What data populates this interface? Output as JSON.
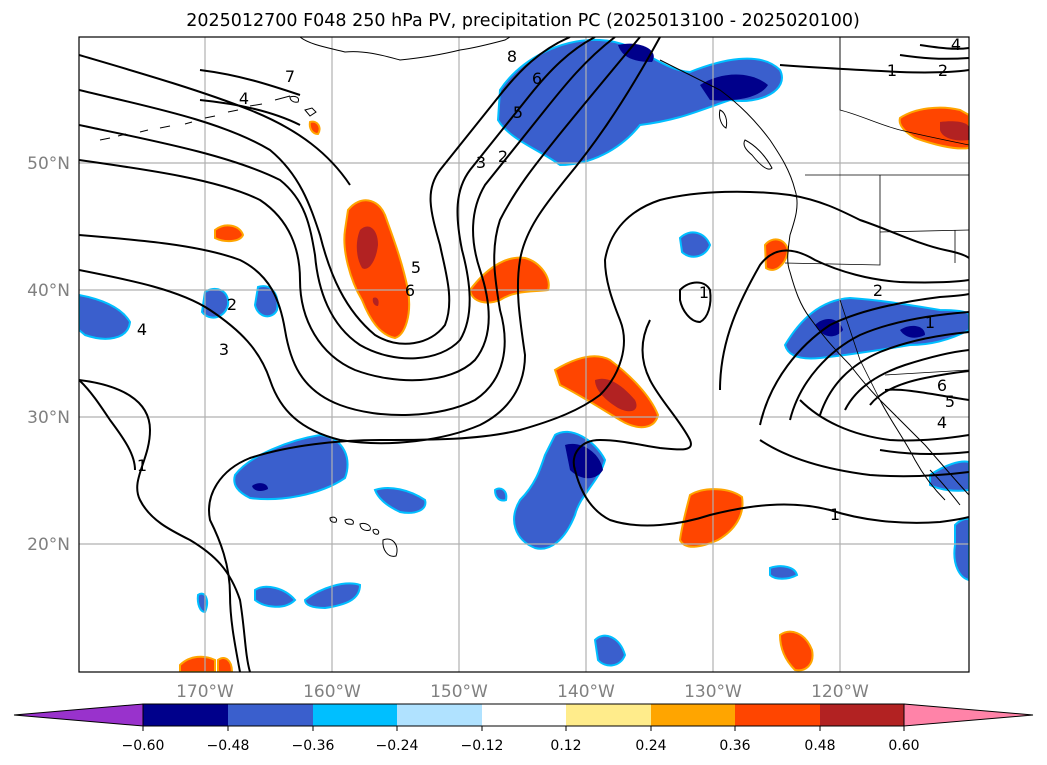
{
  "title": "2025012700 F048 250 hPa PV, precipitation PC (2025013100 - 2025020100)",
  "latitude_labels": [
    "50°N",
    "40°N",
    "30°N",
    "20°N"
  ],
  "longitude_labels": [
    "170°W",
    "160°W",
    "150°W",
    "140°W",
    "130°W",
    "120°W"
  ],
  "colorbar": {
    "tick_labels": [
      "−0.60",
      "−0.48",
      "−0.36",
      "−0.24",
      "−0.12",
      "0.12",
      "0.24",
      "0.36",
      "0.48",
      "0.60"
    ],
    "colors": [
      "#9932cc",
      "#00008b",
      "#3a5fcd",
      "#00bfff",
      "#b0e2ff",
      "#ffffff",
      "#ffec8b",
      "#ffa500",
      "#ff4500",
      "#b22222",
      "#ff83a8"
    ]
  },
  "contour_labels": [
    "7",
    "4",
    "8",
    "6",
    "5",
    "3",
    "2",
    "1",
    "2",
    "4",
    "2",
    "3",
    "4",
    "5",
    "6",
    "1",
    "1",
    "2",
    "1",
    "6",
    "5",
    "4",
    "1",
    "1"
  ],
  "colors": {
    "contour": "#000000",
    "gridline": "#b0b0b0",
    "tick_text": "#808080"
  }
}
